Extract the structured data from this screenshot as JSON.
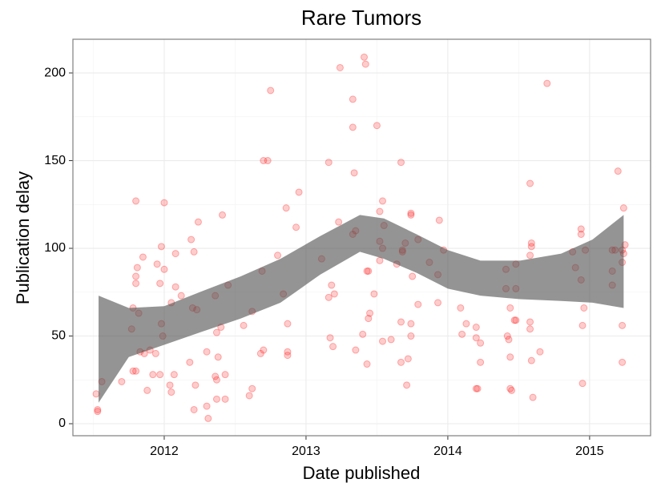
{
  "chart_data": {
    "type": "scatter",
    "title": "Rare Tumors",
    "x_label": "Date published",
    "y_label": "Publication delay",
    "xlim": [
      2011.356,
      2015.43
    ],
    "ylim": [
      -6.85,
      219.2
    ],
    "xticks": [
      2012,
      2013,
      2014,
      2015
    ],
    "yticks": [
      0,
      50,
      100,
      150,
      200
    ],
    "grid": true,
    "color": "#ff0000",
    "alpha": 0.2,
    "x": [
      2011.53,
      2011.53,
      2011.52,
      2011.56,
      2011.7,
      2011.78,
      2011.8,
      2011.77,
      2011.78,
      2011.8,
      2011.81,
      2011.8,
      2011.8,
      2011.82,
      2011.83,
      2011.86,
      2011.85,
      2011.9,
      2011.88,
      2011.92,
      2011.94,
      2011.95,
      2011.97,
      2011.98,
      2011.98,
      2011.99,
      2012.0,
      2012.0,
      2011.97,
      2012.04,
      2012.05,
      2012.05,
      2012.08,
      2012.08,
      2012.07,
      2012.12,
      2012.18,
      2012.19,
      2012.2,
      2012.21,
      2012.22,
      2012.21,
      2012.23,
      2012.24,
      2012.3,
      2012.3,
      2012.31,
      2012.36,
      2012.37,
      2012.37,
      2012.36,
      2012.37,
      2012.38,
      2012.4,
      2012.41,
      2012.43,
      2012.43,
      2012.45,
      2012.56,
      2012.6,
      2012.62,
      2012.62,
      2012.68,
      2012.7,
      2012.69,
      2012.7,
      2012.73,
      2012.75,
      2012.8,
      2012.84,
      2012.86,
      2012.87,
      2012.87,
      2012.87,
      2012.93,
      2012.95,
      2013.11,
      2013.16,
      2013.16,
      2013.18,
      2013.19,
      2013.2,
      2013.17,
      2013.23,
      2013.24,
      2013.33,
      2013.33,
      2013.34,
      2013.33,
      2013.35,
      2013.35,
      2013.41,
      2013.42,
      2013.4,
      2013.43,
      2013.43,
      2013.44,
      2013.45,
      2013.44,
      2013.48,
      2013.5,
      2013.52,
      2013.52,
      2013.54,
      2013.52,
      2013.55,
      2013.54,
      2013.54,
      2013.6,
      2013.64,
      2013.67,
      2013.68,
      2013.68,
      2013.67,
      2013.67,
      2013.7,
      2013.72,
      2013.71,
      2013.74,
      2013.74,
      2013.74,
      2013.75,
      2013.74,
      2013.79,
      2013.79,
      2013.87,
      2013.94,
      2013.93,
      2013.93,
      2013.97,
      2014.09,
      2014.1,
      2014.13,
      2014.2,
      2014.2,
      2014.21,
      2014.2,
      2014.23,
      2014.23,
      2014.41,
      2014.41,
      2014.42,
      2014.43,
      2014.44,
      2014.44,
      2014.44,
      2014.45,
      2014.47,
      2014.48,
      2014.48,
      2014.48,
      2014.58,
      2014.58,
      2014.59,
      2014.59,
      2014.58,
      2014.58,
      2014.59,
      2014.6,
      2014.65,
      2014.7,
      2014.88,
      2014.9,
      2014.94,
      2014.94,
      2014.94,
      2014.96,
      2014.95,
      2014.95,
      2014.97,
      2015.16,
      2015.16,
      2015.16,
      2015.18,
      2015.2,
      2015.23,
      2015.23,
      2015.23,
      2015.24,
      2015.24,
      2015.25,
      2015.23
    ],
    "values": [
      7,
      8,
      17,
      24,
      24,
      30,
      30,
      54,
      66,
      127,
      89,
      84,
      80,
      63,
      41,
      40,
      95,
      42,
      19,
      28,
      40,
      91,
      80,
      101,
      57,
      50,
      88,
      126,
      28,
      22,
      18,
      69,
      78,
      97,
      28,
      73,
      35,
      105,
      66,
      98,
      22,
      8,
      65,
      115,
      41,
      10,
      3,
      73,
      52,
      14,
      27,
      25,
      38,
      55,
      119,
      28,
      14,
      79,
      56,
      16,
      20,
      64,
      40,
      42,
      87,
      150,
      150,
      190,
      96,
      74,
      123,
      41,
      39,
      57,
      112,
      132,
      94,
      149,
      72,
      79,
      44,
      74,
      49,
      115,
      203,
      185,
      169,
      143,
      108,
      110,
      42,
      209,
      205,
      51,
      34,
      87,
      87,
      63,
      60,
      74,
      170,
      104,
      121,
      127,
      93,
      113,
      100,
      47,
      48,
      91,
      149,
      98,
      99,
      58,
      35,
      103,
      37,
      22,
      119,
      120,
      57,
      84,
      50,
      105,
      68,
      92,
      116,
      85,
      69,
      99,
      66,
      51,
      57,
      55,
      20,
      20,
      49,
      46,
      35,
      88,
      77,
      50,
      48,
      66,
      38,
      20,
      19,
      59,
      59,
      77,
      91,
      137,
      96,
      103,
      101,
      58,
      54,
      36,
      15,
      41,
      194,
      98,
      89,
      111,
      108,
      82,
      66,
      56,
      23,
      99,
      99,
      87,
      79,
      99,
      144,
      92,
      56,
      35,
      123,
      97,
      102,
      99
    ],
    "band": {
      "color": "#4d4d4d",
      "x": [
        2011.537,
        2011.75,
        2012.0,
        2012.25,
        2012.54,
        2012.82,
        2013.1,
        2013.38,
        2013.55,
        2013.78,
        2014.0,
        2014.23,
        2014.51,
        2014.8,
        2015.02,
        2015.24
      ],
      "upper": [
        73,
        66,
        67,
        75,
        84,
        94,
        107,
        119,
        117,
        108,
        99,
        93,
        93,
        97,
        105,
        119
      ],
      "lower": [
        12,
        38,
        45,
        52,
        60,
        69,
        85,
        98,
        94,
        86,
        77,
        73,
        71,
        70,
        69,
        66
      ]
    }
  }
}
